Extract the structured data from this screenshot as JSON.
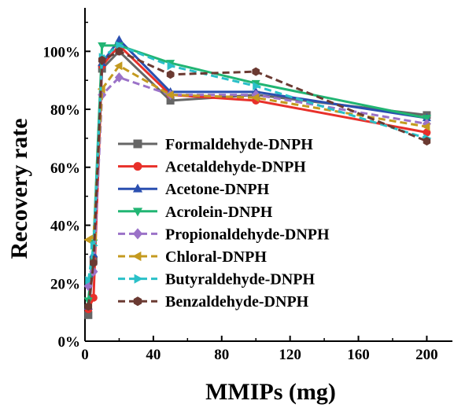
{
  "chart_data": {
    "type": "line",
    "xlabel": "MMIPs (mg)",
    "ylabel": "Recovery rate",
    "xlim": [
      0,
      215
    ],
    "ylim": [
      0,
      115
    ],
    "x_ticks": [
      0,
      40,
      80,
      120,
      160,
      200
    ],
    "x_tick_labels": [
      "0",
      "40",
      "80",
      "120",
      "160",
      "200"
    ],
    "y_ticks": [
      0,
      20,
      40,
      60,
      80,
      100
    ],
    "y_tick_labels": [
      "0%",
      "20%",
      "40%",
      "60%",
      "80%",
      "100%"
    ],
    "grid": false,
    "legend_position": "center",
    "x": [
      2,
      5,
      10,
      20,
      50,
      100,
      200
    ],
    "series": [
      {
        "name": "Formaldehyde-DNPH",
        "color": "#666666",
        "marker": "square",
        "dash": "solid",
        "values": [
          9,
          28,
          94,
          100,
          83,
          85,
          78
        ]
      },
      {
        "name": "Acetaldehyde-DNPH",
        "color": "#e8302a",
        "marker": "circle",
        "dash": "solid",
        "values": [
          11,
          15,
          95,
          102,
          85,
          83,
          72
        ]
      },
      {
        "name": "Acetone-DNPH",
        "color": "#2a4fb0",
        "marker": "triangle-up",
        "dash": "solid",
        "values": [
          12,
          30,
          96,
          104,
          86,
          86,
          77
        ]
      },
      {
        "name": "Acrolein-DNPH",
        "color": "#21b573",
        "marker": "triangle-down",
        "dash": "solid",
        "values": [
          14,
          34,
          102,
          102,
          96,
          89,
          77
        ]
      },
      {
        "name": "Propionaldehyde-DNPH",
        "color": "#9b72c8",
        "marker": "diamond",
        "dash": "dashed",
        "values": [
          19,
          24,
          85,
          91,
          85,
          85,
          75
        ]
      },
      {
        "name": "Chloral-DNPH",
        "color": "#c49a1f",
        "marker": "triangle-left",
        "dash": "dashed",
        "values": [
          35,
          36,
          87,
          95,
          85,
          84,
          74
        ]
      },
      {
        "name": "Butyraldehyde-DNPH",
        "color": "#2ac0c8",
        "marker": "triangle-right",
        "dash": "dashed",
        "values": [
          21,
          33,
          98,
          102,
          95,
          88,
          70
        ]
      },
      {
        "name": "Benzaldehyde-DNPH",
        "color": "#6b3a32",
        "marker": "hexagon",
        "dash": "dashed",
        "values": [
          12,
          27,
          97,
          100,
          92,
          93,
          69
        ]
      }
    ]
  }
}
